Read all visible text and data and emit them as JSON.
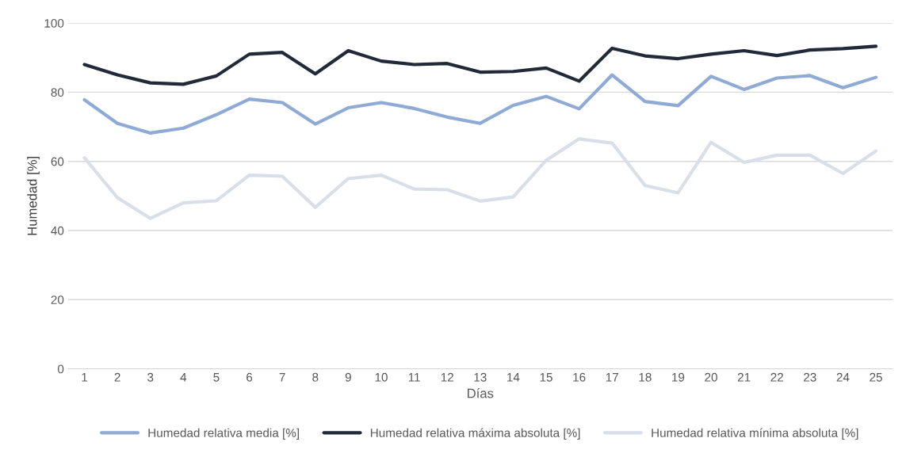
{
  "chart_data": {
    "type": "line",
    "xlabel": "Días",
    "ylabel": "Humedad [%]",
    "categories": [
      "1",
      "2",
      "3",
      "4",
      "5",
      "6",
      "7",
      "8",
      "9",
      "10",
      "11",
      "12",
      "13",
      "14",
      "15",
      "16",
      "17",
      "18",
      "19",
      "20",
      "21",
      "22",
      "23",
      "24",
      "25"
    ],
    "series": [
      {
        "name": "Humedad relativa media [%]",
        "color": "#8eaad5",
        "values": [
          77.8,
          71,
          68.2,
          69.6,
          73.5,
          78,
          77,
          70.8,
          75.5,
          77,
          75.3,
          72.8,
          71,
          76.2,
          78.8,
          75.2,
          85,
          77.3,
          76.1,
          84.6,
          80.8,
          84.1,
          84.8,
          81.3,
          84.3
        ]
      },
      {
        "name": "Humedad relativa máxima absoluta [%]",
        "color": "#222a3a",
        "values": [
          88,
          85,
          82.7,
          82.3,
          84.7,
          91,
          91.5,
          85.3,
          92,
          89,
          88,
          88.3,
          85.8,
          86,
          87,
          83.2,
          92.7,
          90.5,
          89.7,
          91,
          92,
          90.6,
          92.2,
          92.6,
          93.3
        ]
      },
      {
        "name": "Humedad relativa mínima absoluta [%]",
        "color": "#d9dfe9",
        "values": [
          61,
          49.5,
          43.5,
          48,
          48.6,
          56,
          55.7,
          46.7,
          55,
          56,
          52,
          51.8,
          48.5,
          49.7,
          60.3,
          66.5,
          65.3,
          53,
          50.9,
          65.5,
          59.7,
          61.8,
          61.8,
          56.5,
          63
        ]
      }
    ],
    "ylim": [
      0,
      100
    ],
    "yticks": [
      0,
      20,
      40,
      60,
      80,
      100
    ],
    "grid": "y",
    "legend": "bottom",
    "marker": "none",
    "line_style": "solid"
  }
}
